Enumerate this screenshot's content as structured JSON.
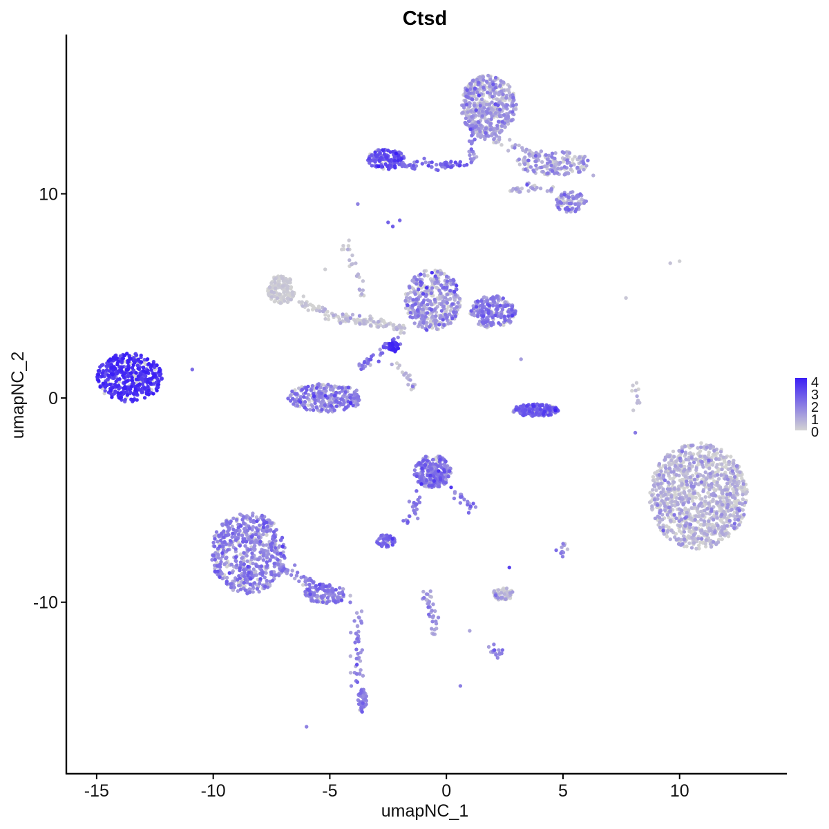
{
  "chart_data": {
    "type": "scatter",
    "title": "Ctsd",
    "xlabel": "umapNC_1",
    "ylabel": "umapNC_2",
    "xlim": [
      -16.3,
      14.6
    ],
    "ylim": [
      -18.4,
      17.8
    ],
    "x_ticks": [
      -15,
      -10,
      -5,
      0,
      5,
      10
    ],
    "x_tick_labels": [
      "-15",
      "-10",
      "-5",
      "0",
      "5",
      "10"
    ],
    "y_ticks": [
      -10,
      0,
      10
    ],
    "y_tick_labels": [
      "-10",
      "0",
      "10"
    ],
    "grid": false,
    "legend": {
      "placement": "right",
      "type": "colorbar",
      "range": [
        0,
        4
      ],
      "ticks": [
        0,
        1,
        2,
        3,
        4
      ],
      "tick_labels": [
        "0",
        "1",
        "2",
        "3",
        "4"
      ],
      "low_color": "#d3d3d3",
      "high_color": "#3b1ff5"
    },
    "clusters": [
      {
        "name": "left-blob",
        "cx": -13.6,
        "cy": 1.0,
        "rx": 1.4,
        "ry": 1.2,
        "n": 420,
        "expr": 3.5,
        "expr_sd": 0.45
      },
      {
        "name": "top-right-arm-head",
        "cx": 1.8,
        "cy": 14.3,
        "rx": 1.2,
        "ry": 1.5,
        "n": 480,
        "expr": 0.9,
        "expr_sd": 0.7
      },
      {
        "name": "top-left-arm",
        "cx": -2.6,
        "cy": 11.7,
        "rx": 0.8,
        "ry": 0.5,
        "n": 140,
        "expr": 2.7,
        "expr_sd": 0.5
      },
      {
        "name": "top-right-branch",
        "cx": 4.6,
        "cy": 11.5,
        "rx": 1.6,
        "ry": 0.6,
        "n": 160,
        "expr": 1.0,
        "expr_sd": 0.7
      },
      {
        "name": "top-right-lobe",
        "cx": 5.3,
        "cy": 9.6,
        "rx": 0.7,
        "ry": 0.5,
        "n": 80,
        "expr": 1.5,
        "expr_sd": 0.6
      },
      {
        "name": "mid-left-grey",
        "cx": -7.1,
        "cy": 5.3,
        "rx": 0.6,
        "ry": 0.7,
        "n": 140,
        "expr": 0.1,
        "expr_sd": 0.2
      },
      {
        "name": "mid-center-cluster",
        "cx": -0.6,
        "cy": 4.8,
        "rx": 1.2,
        "ry": 1.5,
        "n": 380,
        "expr": 1.2,
        "expr_sd": 0.8
      },
      {
        "name": "mid-right-cluster",
        "cx": 2.0,
        "cy": 4.2,
        "rx": 1.0,
        "ry": 0.8,
        "n": 200,
        "expr": 1.7,
        "expr_sd": 0.6
      },
      {
        "name": "arc-left",
        "cx": -5.2,
        "cy": 0.0,
        "rx": 1.6,
        "ry": 0.7,
        "n": 260,
        "expr": 1.6,
        "expr_sd": 0.7
      },
      {
        "name": "arc-right",
        "cx": 3.8,
        "cy": -0.6,
        "rx": 1.0,
        "ry": 0.3,
        "n": 150,
        "expr": 2.5,
        "expr_sd": 0.5
      },
      {
        "name": "lower-center-cluster",
        "cx": -0.6,
        "cy": -3.6,
        "rx": 0.8,
        "ry": 0.8,
        "n": 240,
        "expr": 1.8,
        "expr_sd": 0.6
      },
      {
        "name": "bottom-left-blob",
        "cx": -8.5,
        "cy": -7.6,
        "rx": 1.6,
        "ry": 2.0,
        "n": 560,
        "expr": 1.6,
        "expr_sd": 0.6
      },
      {
        "name": "bottom-left-stem",
        "cx": -5.2,
        "cy": -9.6,
        "rx": 0.9,
        "ry": 0.5,
        "n": 110,
        "expr": 1.8,
        "expr_sd": 0.5
      },
      {
        "name": "bottom-stem-tip",
        "cx": -3.6,
        "cy": -14.8,
        "rx": 0.2,
        "ry": 0.6,
        "n": 50,
        "expr": 1.8,
        "expr_sd": 0.5
      },
      {
        "name": "small-pink-cluster",
        "cx": -2.6,
        "cy": -7.0,
        "rx": 0.4,
        "ry": 0.3,
        "n": 50,
        "expr": 2.3,
        "expr_sd": 0.4
      },
      {
        "name": "small-grey-cluster",
        "cx": 2.4,
        "cy": -9.6,
        "rx": 0.5,
        "ry": 0.3,
        "n": 60,
        "expr": 0.5,
        "expr_sd": 0.6
      },
      {
        "name": "large-right-blob",
        "cx": 10.8,
        "cy": -4.8,
        "rx": 2.1,
        "ry": 2.6,
        "n": 1100,
        "expr": 0.45,
        "expr_sd": 0.6
      }
    ],
    "trails": [
      {
        "from": [
          -1.8,
          11.4
        ],
        "to": [
          0.9,
          11.4
        ],
        "n": 60,
        "expr": 2.4
      },
      {
        "from": [
          1.1,
          11.5
        ],
        "to": [
          1.2,
          13.4
        ],
        "n": 40,
        "expr": 1.5
      },
      {
        "from": [
          1.4,
          13.0
        ],
        "to": [
          4.0,
          11.8
        ],
        "n": 40,
        "expr": 0.8
      },
      {
        "from": [
          2.8,
          10.2
        ],
        "to": [
          4.6,
          10.3
        ],
        "n": 30,
        "expr": 0.8
      },
      {
        "from": [
          -4.6,
          4.0
        ],
        "to": [
          -1.8,
          3.4
        ],
        "n": 90,
        "expr": 0.1
      },
      {
        "from": [
          -4.3,
          7.5
        ],
        "to": [
          -3.6,
          5.0
        ],
        "n": 25,
        "expr": 0.2
      },
      {
        "from": [
          -6.4,
          4.8
        ],
        "to": [
          -4.5,
          3.8
        ],
        "n": 40,
        "expr": 0.1
      },
      {
        "from": [
          -3.8,
          1.4
        ],
        "to": [
          -2.2,
          2.8
        ],
        "n": 35,
        "expr": 2.0
      },
      {
        "from": [
          -2.2,
          1.8
        ],
        "to": [
          -1.4,
          0.6
        ],
        "n": 20,
        "expr": 0.5
      },
      {
        "from": [
          -1.6,
          -6.2
        ],
        "to": [
          -1.2,
          -4.6
        ],
        "n": 25,
        "expr": 1.8
      },
      {
        "from": [
          0.2,
          -4.5
        ],
        "to": [
          1.1,
          -5.4
        ],
        "n": 20,
        "expr": 1.8
      },
      {
        "from": [
          -7.3,
          -8.2
        ],
        "to": [
          -4.2,
          -10.0
        ],
        "n": 70,
        "expr": 1.6
      },
      {
        "from": [
          -3.8,
          -10.6
        ],
        "to": [
          -3.8,
          -14.2
        ],
        "n": 40,
        "expr": 1.5
      },
      {
        "from": [
          -0.9,
          -9.4
        ],
        "to": [
          -0.4,
          -11.6
        ],
        "n": 35,
        "expr": 1.2
      },
      {
        "from": [
          8.2,
          -0.6
        ],
        "to": [
          8.1,
          0.8
        ],
        "n": 10,
        "expr": 0.4
      },
      {
        "from": [
          2.0,
          -12.3
        ],
        "to": [
          2.4,
          -12.6
        ],
        "n": 15,
        "expr": 1.7
      },
      {
        "from": [
          4.9,
          -7.2
        ],
        "to": [
          5.1,
          -7.8
        ],
        "n": 10,
        "expr": 1.4
      }
    ],
    "hotspot": {
      "cx": -2.3,
      "cy": 2.5,
      "r": 0.25,
      "n": 30,
      "expr": 4.0
    },
    "singletons": [
      [
        -10.9,
        1.4,
        2.3
      ],
      [
        -5.2,
        6.3,
        0.1
      ],
      [
        7.7,
        4.9,
        0.3
      ],
      [
        9.6,
        6.6,
        0.4
      ],
      [
        10.0,
        6.7,
        0.1
      ],
      [
        -6.0,
        -16.1,
        1.8
      ],
      [
        0.6,
        -14.1,
        1.9
      ],
      [
        8.1,
        -1.7,
        2.0
      ],
      [
        -3.8,
        9.5,
        1.8
      ],
      [
        3.2,
        1.9,
        1.2
      ],
      [
        1.0,
        -11.4,
        1.0
      ],
      [
        6.3,
        10.9,
        0.8
      ],
      [
        -2.5,
        8.6,
        2.5
      ],
      [
        -2.3,
        8.4,
        2.6
      ],
      [
        -2.0,
        8.7,
        2.4
      ],
      [
        2.7,
        -8.3,
        3.2
      ]
    ]
  }
}
